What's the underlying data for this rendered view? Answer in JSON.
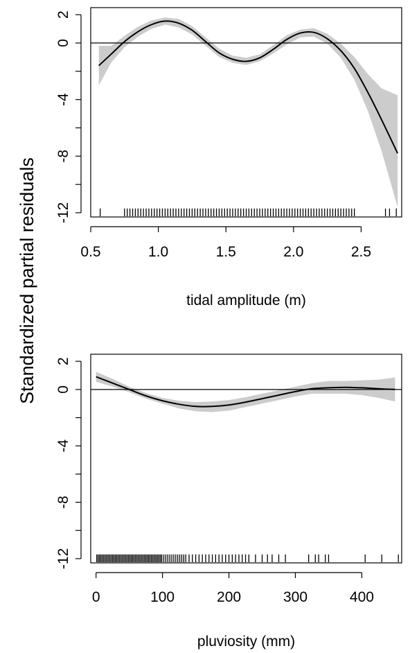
{
  "figure": {
    "shared_ylabel": "Standardized partial residuals"
  },
  "chart_data": [
    {
      "type": "line",
      "xlabel": "tidal amplitude (m)",
      "ylabel": "Standardized partial residuals",
      "xlim": [
        0.5,
        2.8
      ],
      "ylim": [
        -12.3,
        2.5
      ],
      "xticks": [
        "0.5",
        "1.0",
        "1.5",
        "2.0",
        "2.5"
      ],
      "xtick_values": [
        0.5,
        1.0,
        1.5,
        2.0,
        2.5
      ],
      "yticks": [
        "2",
        "0",
        "-4",
        "-8",
        "-12"
      ],
      "ytick_values": [
        2,
        0,
        -4,
        -8,
        -12
      ],
      "yminor": [
        -2,
        -6,
        -10
      ],
      "reference_line": 0,
      "band_color": "#cccccc",
      "line_color": "#000000",
      "series": [
        {
          "x": [
            0.56,
            0.65,
            0.75,
            0.85,
            0.95,
            1.05,
            1.15,
            1.25,
            1.35,
            1.45,
            1.55,
            1.65,
            1.75,
            1.85,
            1.95,
            2.05,
            2.15,
            2.25,
            2.35,
            2.45,
            2.55,
            2.65,
            2.77
          ],
          "y": [
            -1.6,
            -0.8,
            0.1,
            0.8,
            1.3,
            1.55,
            1.4,
            0.9,
            0.1,
            -0.7,
            -1.15,
            -1.3,
            -1.05,
            -0.45,
            0.25,
            0.7,
            0.75,
            0.3,
            -0.55,
            -1.8,
            -3.5,
            -5.4,
            -7.8
          ],
          "lower": [
            -3.0,
            -1.4,
            -0.3,
            0.45,
            1.0,
            1.3,
            1.1,
            0.6,
            -0.2,
            -1.0,
            -1.4,
            -1.55,
            -1.3,
            -0.75,
            -0.1,
            0.4,
            0.45,
            -0.05,
            -1.05,
            -2.6,
            -4.8,
            -7.6,
            -11.6
          ],
          "upper": [
            -0.2,
            -0.2,
            0.5,
            1.15,
            1.6,
            1.8,
            1.7,
            1.2,
            0.4,
            -0.4,
            -0.9,
            -1.05,
            -0.8,
            -0.15,
            0.55,
            0.95,
            1.05,
            0.65,
            -0.05,
            -1.0,
            -2.2,
            -3.2,
            -3.7
          ]
        }
      ],
      "rug": [
        0.57,
        0.75,
        0.77,
        0.79,
        0.81,
        0.83,
        0.85,
        0.87,
        0.89,
        0.91,
        0.93,
        0.95,
        0.97,
        0.99,
        1.01,
        1.03,
        1.05,
        1.07,
        1.09,
        1.11,
        1.13,
        1.15,
        1.17,
        1.19,
        1.21,
        1.23,
        1.25,
        1.27,
        1.29,
        1.31,
        1.33,
        1.35,
        1.37,
        1.39,
        1.41,
        1.43,
        1.45,
        1.47,
        1.49,
        1.51,
        1.53,
        1.55,
        1.57,
        1.59,
        1.61,
        1.63,
        1.65,
        1.67,
        1.69,
        1.71,
        1.73,
        1.75,
        1.77,
        1.79,
        1.81,
        1.83,
        1.85,
        1.87,
        1.89,
        1.91,
        1.93,
        1.95,
        1.97,
        1.99,
        2.01,
        2.03,
        2.05,
        2.07,
        2.09,
        2.11,
        2.13,
        2.15,
        2.17,
        2.19,
        2.21,
        2.23,
        2.25,
        2.27,
        2.29,
        2.31,
        2.33,
        2.35,
        2.37,
        2.39,
        2.41,
        2.43,
        2.45,
        2.68,
        2.71,
        2.76
      ]
    },
    {
      "type": "line",
      "xlabel": "pluviosity (mm)",
      "ylabel": "Standardized partial residuals",
      "xlim": [
        -8,
        460
      ],
      "ylim": [
        -12.3,
        2.5
      ],
      "xticks": [
        "0",
        "100",
        "200",
        "300",
        "400"
      ],
      "xtick_values": [
        0,
        100,
        200,
        300,
        400
      ],
      "yticks": [
        "2",
        "0",
        "-4",
        "-8",
        "-12"
      ],
      "ytick_values": [
        2,
        0,
        -4,
        -8,
        -12
      ],
      "yminor": [
        -2,
        -6,
        -10
      ],
      "reference_line": 0,
      "band_color": "#cccccc",
      "line_color": "#000000",
      "series": [
        {
          "x": [
            0,
            25,
            50,
            75,
            100,
            125,
            150,
            175,
            200,
            225,
            250,
            275,
            300,
            325,
            350,
            375,
            400,
            425,
            450
          ],
          "y": [
            0.9,
            0.45,
            0.0,
            -0.45,
            -0.8,
            -1.05,
            -1.2,
            -1.2,
            -1.1,
            -0.9,
            -0.65,
            -0.4,
            -0.15,
            0.05,
            0.12,
            0.15,
            0.12,
            0.05,
            0.0
          ],
          "lower": [
            0.55,
            0.2,
            -0.2,
            -0.65,
            -1.0,
            -1.35,
            -1.55,
            -1.6,
            -1.5,
            -1.25,
            -1.0,
            -0.75,
            -0.5,
            -0.3,
            -0.3,
            -0.3,
            -0.4,
            -0.6,
            -0.85
          ],
          "upper": [
            1.25,
            0.75,
            0.2,
            -0.25,
            -0.6,
            -0.8,
            -0.9,
            -0.85,
            -0.75,
            -0.55,
            -0.3,
            -0.05,
            0.2,
            0.45,
            0.6,
            0.6,
            0.65,
            0.7,
            0.85
          ]
        }
      ],
      "rug": [
        1,
        3,
        5,
        7,
        9,
        11,
        13,
        15,
        17,
        19,
        21,
        23,
        25,
        27,
        29,
        31,
        33,
        35,
        37,
        39,
        41,
        43,
        45,
        47,
        49,
        51,
        53,
        55,
        57,
        59,
        61,
        63,
        65,
        67,
        69,
        71,
        73,
        75,
        77,
        79,
        81,
        83,
        85,
        87,
        89,
        91,
        93,
        95,
        97,
        99,
        102,
        105,
        108,
        111,
        114,
        117,
        120,
        123,
        126,
        129,
        132,
        135,
        140,
        145,
        150,
        155,
        160,
        165,
        170,
        175,
        180,
        185,
        190,
        195,
        200,
        205,
        210,
        215,
        220,
        225,
        230,
        240,
        250,
        258,
        265,
        275,
        285,
        320,
        330,
        335,
        345,
        350,
        405,
        430,
        455
      ]
    }
  ]
}
